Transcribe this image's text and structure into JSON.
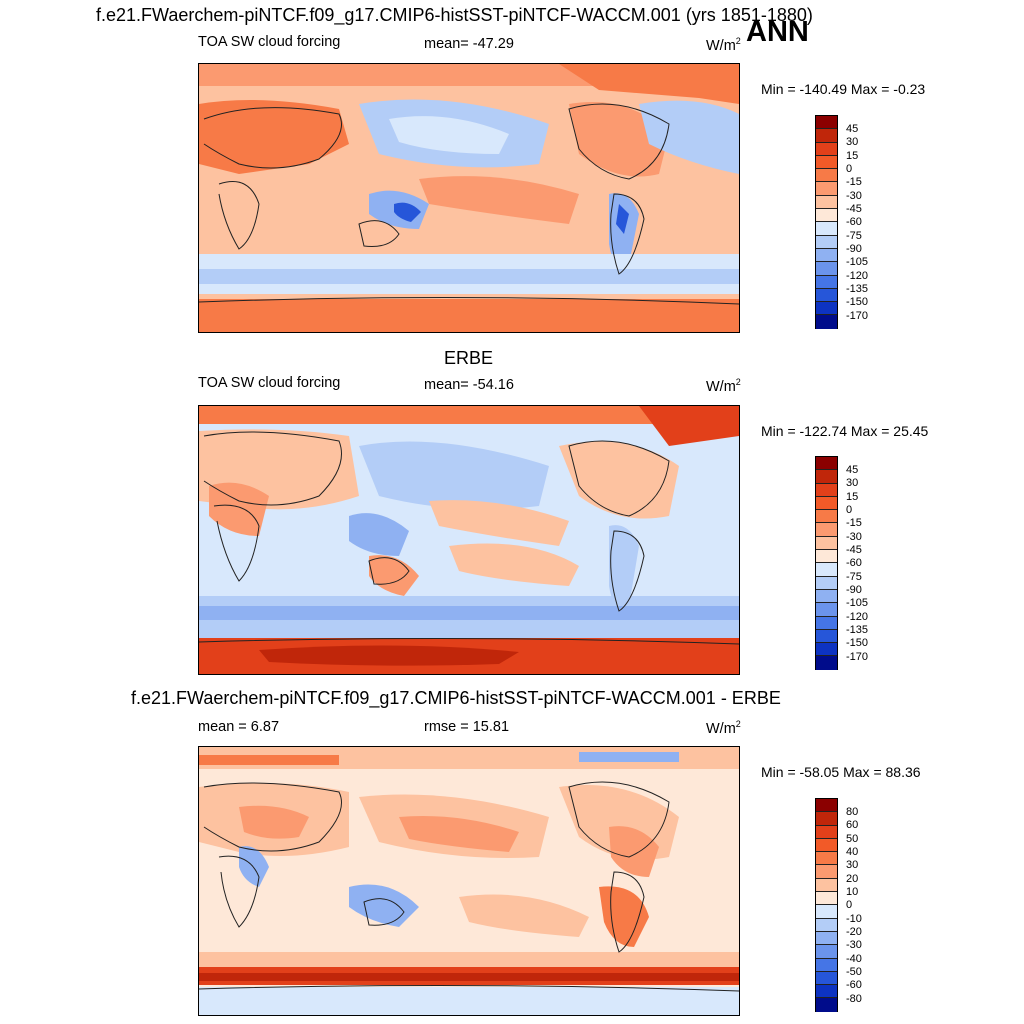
{
  "main_title": "f.e21.FWaerchem-piNTCF.f09_g17.CMIP6-histSST-piNTCF-WACCM.001 (yrs 1851-1880)",
  "season": "ANN",
  "panels": [
    {
      "subtitle": "",
      "left_label": "TOA SW cloud forcing",
      "center_label": "mean= -47.29",
      "units": "W/m",
      "units_sup": "2",
      "minmax": "Min = -140.49 Max =  -0.23",
      "colorbar_labels": [
        "45",
        "30",
        "15",
        "0",
        "-15",
        "-30",
        "-45",
        "-60",
        "-75",
        "-90",
        "-105",
        "-120",
        "-135",
        "-150",
        "-170"
      ]
    },
    {
      "subtitle": "ERBE",
      "left_label": "TOA SW cloud forcing",
      "center_label": "mean= -54.16",
      "units": "W/m",
      "units_sup": "2",
      "minmax": "Min = -122.74 Max =  25.45",
      "colorbar_labels": [
        "45",
        "30",
        "15",
        "0",
        "-15",
        "-30",
        "-45",
        "-60",
        "-75",
        "-90",
        "-105",
        "-120",
        "-135",
        "-150",
        "-170"
      ]
    },
    {
      "subtitle": "f.e21.FWaerchem-piNTCF.f09_g17.CMIP6-histSST-piNTCF-WACCM.001 - ERBE",
      "left_label": "mean =   6.87",
      "center_label": "rmse =  15.81",
      "units": "W/m",
      "units_sup": "2",
      "minmax": "Min = -58.05 Max =  88.36",
      "colorbar_labels": [
        "80",
        "60",
        "50",
        "40",
        "30",
        "20",
        "10",
        "0",
        "-10",
        "-20",
        "-30",
        "-40",
        "-50",
        "-60",
        "-80"
      ]
    }
  ],
  "colors": {
    "scale": [
      "#8b0000",
      "#c0260a",
      "#e2401a",
      "#f25a28",
      "#f77a47",
      "#fb9a70",
      "#fdc2a0",
      "#fee8d8",
      "#d8e8fc",
      "#b3cdf7",
      "#8fb1f2",
      "#6b94ec",
      "#4575e6",
      "#2656d9",
      "#0d33c2",
      "#000c8b"
    ]
  }
}
